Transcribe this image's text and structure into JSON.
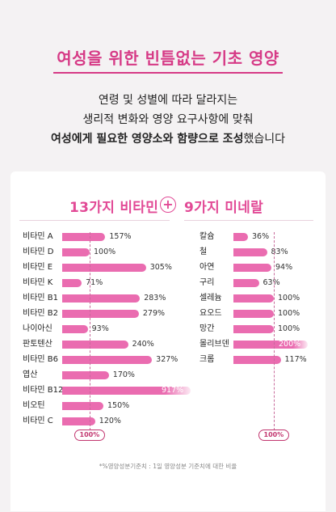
{
  "header": {
    "title": "여성을 위한 빈틈없는 기초 영양",
    "intro_line1": "연령 및 성별에 따라 달라지는",
    "intro_line2": "생리적 변화와 영양 요구사항에 맞춰",
    "intro_line3_bold1": "여성에게 필요한 영양소와 함량으로 조성",
    "intro_line3_rest": "했습니다"
  },
  "chart_data": [
    {
      "type": "bar",
      "orientation": "horizontal",
      "title": "13가지 비타민",
      "categories": [
        "비타민 A",
        "비타민 D",
        "비타민 E",
        "비타민 K",
        "비타민 B1",
        "비타민 B2",
        "나이아신",
        "판토텐산",
        "비타민 B6",
        "엽산",
        "비타민 B12",
        "비오틴",
        "비타민 C"
      ],
      "values": [
        157,
        100,
        305,
        71,
        283,
        279,
        93,
        240,
        327,
        170,
        917,
        150,
        120
      ],
      "value_labels": [
        "157%",
        "100%",
        "305%",
        "71%",
        "283%",
        "279%",
        "93%",
        "240%",
        "327%",
        "170%",
        "917%",
        "150%",
        "120%"
      ],
      "unit": "%",
      "reference": {
        "value": 100,
        "label": "100%"
      },
      "xlim": [
        0,
        350
      ],
      "clipped": [
        false,
        false,
        false,
        false,
        false,
        false,
        false,
        false,
        false,
        false,
        true,
        false,
        false
      ]
    },
    {
      "type": "bar",
      "orientation": "horizontal",
      "title": "9가지 미네랄",
      "categories": [
        "칼슘",
        "철",
        "아연",
        "구리",
        "셀레늄",
        "요오드",
        "망간",
        "몰리브덴",
        "크롬"
      ],
      "values": [
        36,
        83,
        94,
        63,
        100,
        100,
        100,
        200,
        117
      ],
      "value_labels": [
        "36%",
        "83%",
        "94%",
        "63%",
        "100%",
        "100%",
        "100%",
        "200%",
        "117%"
      ],
      "unit": "%",
      "reference": {
        "value": 100,
        "label": "100%"
      },
      "xlim": [
        0,
        180
      ],
      "clipped": [
        false,
        false,
        false,
        false,
        false,
        false,
        false,
        true,
        false
      ]
    }
  ],
  "plus_symbol": "+",
  "footnote": "*%영양성분기준치 : 1일 영양성분 기준치에 대한 비율",
  "colors": {
    "accent": "#e24a96",
    "bar": "#ea6cb0",
    "background": "#f4f2f3",
    "card": "#ffffff"
  }
}
